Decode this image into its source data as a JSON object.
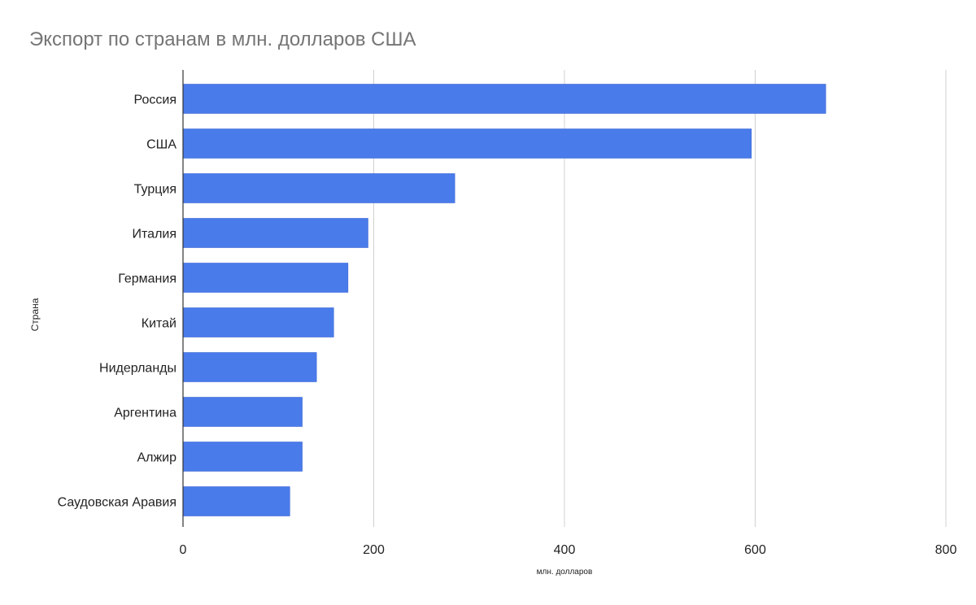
{
  "chart_data": {
    "type": "bar",
    "orientation": "horizontal",
    "title": "Экспорт по странам в млн. долларов США",
    "xlabel": "млн. долларов",
    "ylabel": "Страна",
    "categories": [
      "Россия",
      "США",
      "Турция",
      "Италия",
      "Германия",
      "Китай",
      "Нидерланды",
      "Аргентина",
      "Алжир",
      "Саудовская Аравия"
    ],
    "values": [
      674,
      596,
      285,
      194,
      173,
      158,
      140,
      125,
      125,
      112
    ],
    "xlim": [
      0,
      800
    ],
    "x_ticks": [
      "0",
      "200",
      "400",
      "600",
      "800"
    ],
    "grid": true,
    "legend": "none",
    "bar_color": "#4a7bea",
    "grid_color": "#d0d0d0",
    "axis_color": "#333333",
    "title_color": "#757575"
  }
}
